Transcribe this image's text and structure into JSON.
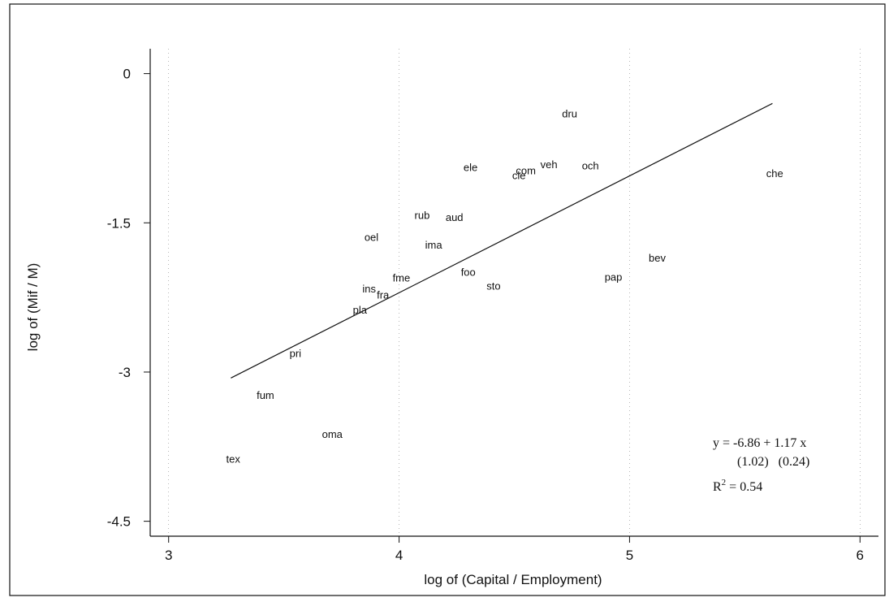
{
  "chart_data": {
    "type": "scatter",
    "xlabel": "log of (Capital / Employment)",
    "ylabel": "log of (Mif / M)",
    "xlim": [
      2.92,
      6.08
    ],
    "ylim": [
      -4.65,
      0.25
    ],
    "xticks": [
      3,
      4,
      5,
      6
    ],
    "yticks": [
      0,
      -1.5,
      -3,
      -4.5
    ],
    "xtick_labels": [
      "3",
      "4",
      "5",
      "6"
    ],
    "ytick_labels": [
      "0",
      "-1.5",
      "-3",
      "-4.5"
    ],
    "grid": true,
    "points": [
      {
        "label": "dru",
        "x": 4.74,
        "y": -0.4
      },
      {
        "label": "ele",
        "x": 4.31,
        "y": -0.94
      },
      {
        "label": "com",
        "x": 4.55,
        "y": -0.97
      },
      {
        "label": "cle",
        "x": 4.52,
        "y": -1.02
      },
      {
        "label": "veh",
        "x": 4.65,
        "y": -0.91
      },
      {
        "label": "och",
        "x": 4.83,
        "y": -0.92
      },
      {
        "label": "che",
        "x": 5.63,
        "y": -1.0
      },
      {
        "label": "rub",
        "x": 4.1,
        "y": -1.42
      },
      {
        "label": "aud",
        "x": 4.24,
        "y": -1.44
      },
      {
        "label": "oel",
        "x": 3.88,
        "y": -1.64
      },
      {
        "label": "ima",
        "x": 4.15,
        "y": -1.72
      },
      {
        "label": "bev",
        "x": 5.12,
        "y": -1.85
      },
      {
        "label": "foo",
        "x": 4.3,
        "y": -1.99
      },
      {
        "label": "pap",
        "x": 4.93,
        "y": -2.04
      },
      {
        "label": "fme",
        "x": 4.01,
        "y": -2.05
      },
      {
        "label": "sto",
        "x": 4.41,
        "y": -2.13
      },
      {
        "label": "ins",
        "x": 3.87,
        "y": -2.16
      },
      {
        "label": "fra",
        "x": 3.93,
        "y": -2.22
      },
      {
        "label": "pla",
        "x": 3.83,
        "y": -2.37
      },
      {
        "label": "pri",
        "x": 3.55,
        "y": -2.81
      },
      {
        "label": "fum",
        "x": 3.42,
        "y": -3.23
      },
      {
        "label": "oma",
        "x": 3.71,
        "y": -3.62
      },
      {
        "label": "tex",
        "x": 3.28,
        "y": -3.87
      }
    ],
    "fit_line": {
      "x": [
        3.27,
        5.62
      ],
      "y": [
        -3.06,
        -0.3
      ]
    },
    "annotation": {
      "line1": "y = -6.86  + 1.17 x",
      "line2": "(1.02)   (0.24)",
      "line3_prefix": "R",
      "line3_sup": "2",
      "line3_suffix": " = 0.54"
    }
  }
}
